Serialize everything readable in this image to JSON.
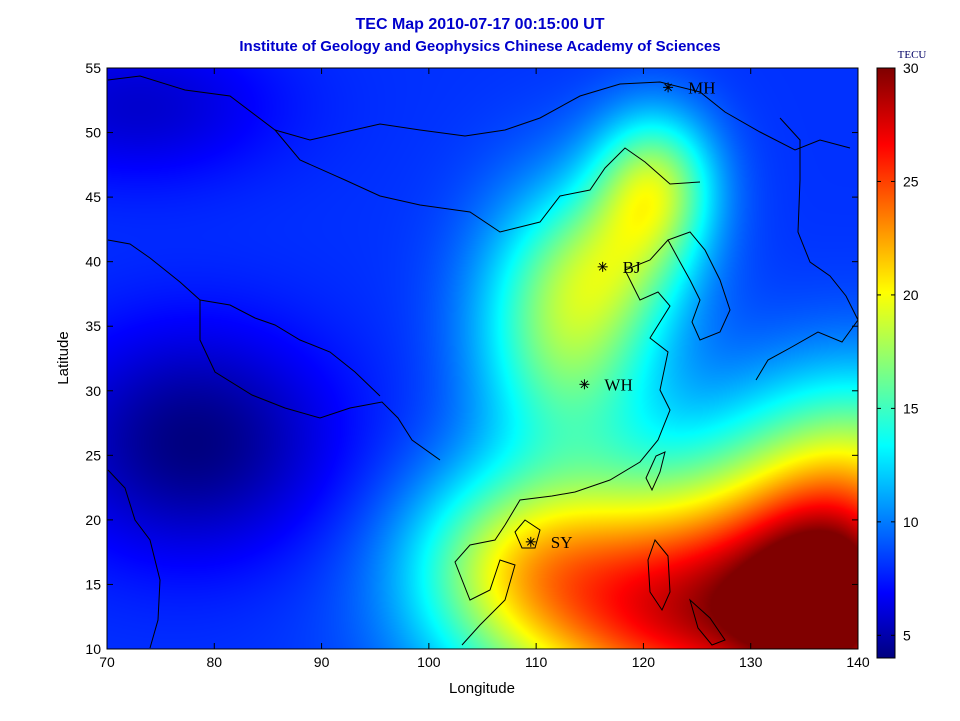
{
  "chart_data": {
    "type": "heatmap",
    "title": "TEC Map 2010-07-17 00:15:00 UT",
    "subtitle": "Institute of Geology and Geophysics Chinese Academy of Sciences",
    "xlabel": "Longitude",
    "ylabel": "Latitude",
    "xlim": [
      70,
      140
    ],
    "ylim": [
      10,
      55
    ],
    "x_ticks": [
      70,
      80,
      90,
      100,
      110,
      120,
      130,
      140
    ],
    "y_ticks": [
      10,
      15,
      20,
      25,
      30,
      35,
      40,
      45,
      50,
      55
    ],
    "colorbar": {
      "label": "TECU",
      "range": [
        4,
        30
      ],
      "ticks": [
        5,
        10,
        15,
        20,
        25,
        30
      ],
      "colormap": "jet"
    },
    "tec_field": {
      "background": 8.5,
      "hotspots": [
        {
          "lon": 121,
          "lat": 46,
          "amp": 9,
          "sx": 4,
          "sy": 4
        },
        {
          "lon": 113,
          "lat": 35,
          "amp": 9,
          "sx": 6,
          "sy": 7
        },
        {
          "lon": 118,
          "lat": 40,
          "amp": 4,
          "sx": 5,
          "sy": 4
        },
        {
          "lon": 125,
          "lat": 13,
          "amp": 19,
          "sx": 13,
          "sy": 7
        },
        {
          "lon": 138,
          "lat": 13,
          "amp": 13,
          "sx": 6,
          "sy": 6
        },
        {
          "lon": 108,
          "lat": 17,
          "amp": 6,
          "sx": 7,
          "sy": 5
        },
        {
          "lon": 140,
          "lat": 24,
          "amp": 8,
          "sx": 9,
          "sy": 6
        }
      ],
      "coldspots": [
        {
          "lon": 78,
          "lat": 26,
          "amp": 4.5,
          "sx": 9,
          "sy": 6
        },
        {
          "lon": 73,
          "lat": 52,
          "amp": 2.5,
          "sx": 9,
          "sy": 4
        }
      ]
    },
    "stations": [
      {
        "name": "MH",
        "lon": 122.3,
        "lat": 53.5
      },
      {
        "name": "BJ",
        "lon": 116.2,
        "lat": 39.6
      },
      {
        "name": "WH",
        "lon": 114.5,
        "lat": 30.5
      },
      {
        "name": "SY",
        "lon": 109.5,
        "lat": 18.3
      }
    ],
    "grid": false
  }
}
